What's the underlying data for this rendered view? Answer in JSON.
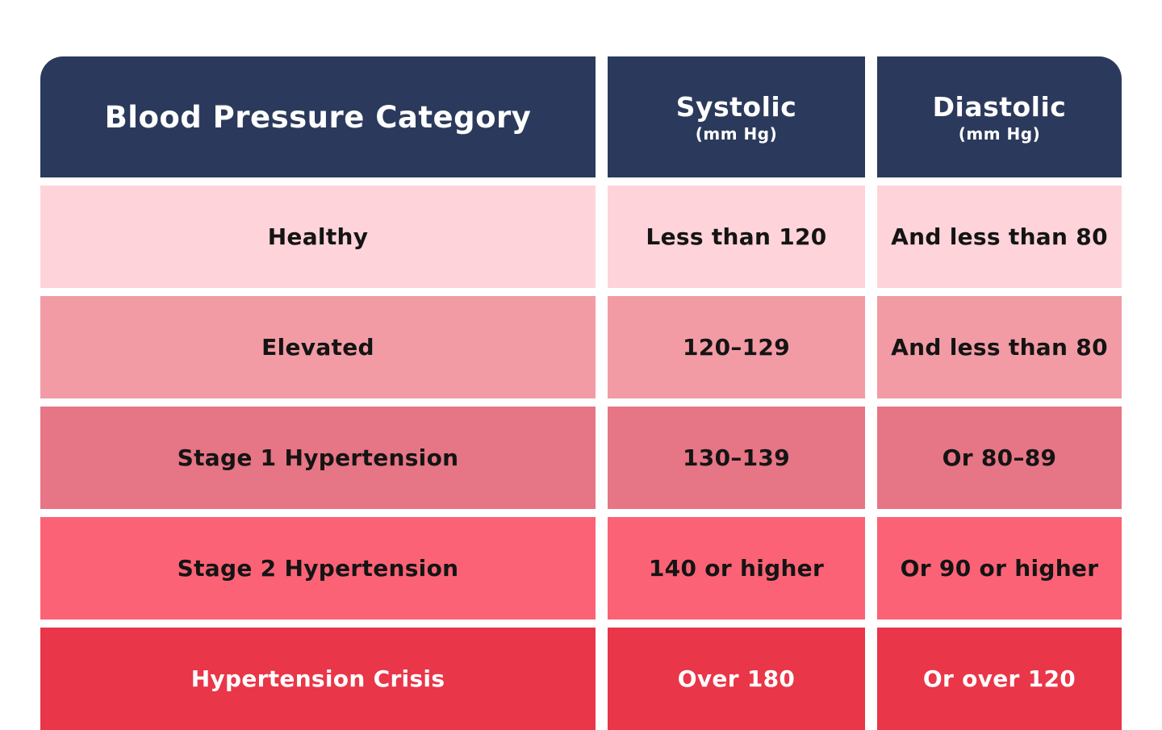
{
  "chart_data": {
    "type": "table",
    "title": "Blood Pressure Category table",
    "columns": [
      "Blood Pressure Category",
      "Systolic (mm Hg)",
      "Diastolic (mm Hg)"
    ],
    "rows": [
      [
        "Healthy",
        "Less than 120",
        "And less than 80"
      ],
      [
        "Elevated",
        "120–129",
        "And less than 80"
      ],
      [
        "Stage 1 Hypertension",
        "130–139",
        "Or 80–89"
      ],
      [
        "Stage 2 Hypertension",
        "140 or higher",
        "Or 90 or higher"
      ],
      [
        "Hypertension Crisis",
        "Over 180",
        "Or over 120"
      ]
    ]
  },
  "table": {
    "header": {
      "category": "Blood Pressure Category",
      "systolic_title": "Systolic",
      "systolic_unit": "(mm Hg)",
      "diastolic_title": "Diastolic",
      "diastolic_unit": "(mm Hg)",
      "bg": "#2b3a5c",
      "text_color": "#ffffff"
    },
    "rows": [
      {
        "category": "Healthy",
        "systolic": "Less than 120",
        "diastolic": "And less than 80",
        "bg": "#ffd3da",
        "text_color": "#141414"
      },
      {
        "category": "Elevated",
        "systolic": "120–129",
        "diastolic": "And less than 80",
        "bg": "#f29ba5",
        "text_color": "#141414"
      },
      {
        "category": "Stage 1 Hypertension",
        "systolic": "130–139",
        "diastolic": "Or 80–89",
        "bg": "#e67585",
        "text_color": "#141414"
      },
      {
        "category": "Stage 2 Hypertension",
        "systolic": "140 or higher",
        "diastolic": "Or 90 or higher",
        "bg": "#fb6275",
        "text_color": "#141414"
      },
      {
        "category": "Hypertension Crisis",
        "systolic": "Over 180",
        "diastolic": "Or over 120",
        "bg": "#e93648",
        "text_color": "#ffffff"
      }
    ],
    "colors": {
      "page_bg": "#ffffff"
    }
  }
}
